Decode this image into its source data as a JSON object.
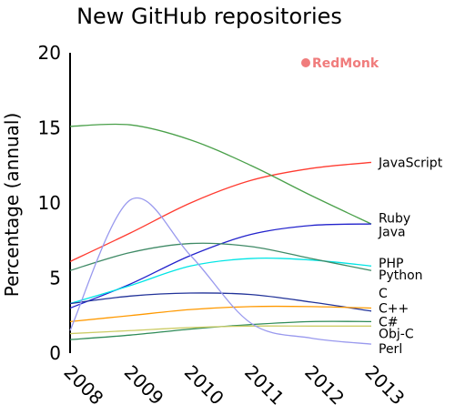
{
  "chart_data": {
    "type": "line",
    "title": "New GitHub repositories",
    "ylabel": "Percentage (annual)",
    "xlabel": "",
    "x": [
      2008,
      2009,
      2010,
      2011,
      2012,
      2013
    ],
    "ylim": [
      0,
      20
    ],
    "yticks": [
      0,
      5,
      10,
      15,
      20
    ],
    "grid": false,
    "legend": "direct labels at right end",
    "brand": "RedMonk",
    "colors": {
      "brand": "#f07c7c"
    },
    "series": [
      {
        "name": "JavaScript",
        "color": "#ff3b30",
        "values": [
          6.1,
          8.0,
          10.0,
          11.5,
          12.3,
          12.7
        ]
      },
      {
        "name": "Ruby",
        "color": "#4aa04a",
        "values": [
          15.1,
          15.2,
          14.2,
          12.5,
          10.5,
          8.6
        ]
      },
      {
        "name": "Java",
        "color": "#2222cc",
        "values": [
          3.0,
          4.6,
          6.5,
          7.9,
          8.5,
          8.6
        ]
      },
      {
        "name": "PHP",
        "color": "#00e5e5",
        "values": [
          3.3,
          4.5,
          5.8,
          6.3,
          6.2,
          5.8
        ]
      },
      {
        "name": "Python",
        "color": "#3f8a66",
        "values": [
          5.5,
          6.7,
          7.3,
          7.1,
          6.3,
          5.5
        ]
      },
      {
        "name": "C",
        "color": "#223399",
        "values": [
          3.3,
          3.8,
          4.0,
          3.9,
          3.4,
          2.8
        ]
      },
      {
        "name": "C++",
        "color": "#ff9900",
        "values": [
          2.1,
          2.5,
          2.9,
          3.1,
          3.1,
          3.0
        ]
      },
      {
        "name": "C#",
        "color": "#2e8b57",
        "values": [
          0.9,
          1.2,
          1.6,
          1.9,
          2.1,
          2.1
        ]
      },
      {
        "name": "Obj-C",
        "color": "#cccc66",
        "values": [
          1.3,
          1.5,
          1.7,
          1.8,
          1.8,
          1.8
        ]
      },
      {
        "name": "Perl",
        "color": "#9999ee",
        "values": [
          1.5,
          10.2,
          6.5,
          2.0,
          1.0,
          0.6
        ]
      }
    ],
    "label_y": {
      "JavaScript": 12.7,
      "Ruby": 9.0,
      "Java": 8.1,
      "PHP": 6.0,
      "Python": 5.2,
      "C": 4.0,
      "C++": 3.0,
      "C#": 2.1,
      "Obj-C": 1.3,
      "Perl": 0.3
    }
  }
}
